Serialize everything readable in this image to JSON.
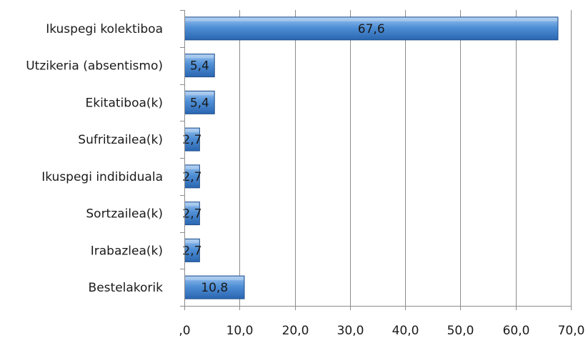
{
  "chart_data": {
    "type": "bar",
    "orientation": "horizontal",
    "categories": [
      "Ikuspegi kolektiboa",
      "Utzikeria (absentismo)",
      "Ekitatiboa(k)",
      "Sufritzailea(k)",
      "Ikuspegi indibiduala",
      "Sortzailea(k)",
      "Irabazlea(k)",
      "Bestelakorik"
    ],
    "values": [
      67.6,
      5.4,
      5.4,
      2.7,
      2.7,
      2.7,
      2.7,
      10.8
    ],
    "value_labels": [
      "67,6",
      "5,4",
      "5,4",
      "2,7",
      "2,7",
      "2,7",
      "2,7",
      "10,8"
    ],
    "xlim": [
      0,
      70
    ],
    "x_ticks": [
      0,
      10,
      20,
      30,
      40,
      50,
      60,
      70
    ],
    "x_tick_labels": [
      ",0",
      "10,0",
      "20,0",
      "30,0",
      "40,0",
      "50,0",
      "60,0",
      "70,0"
    ],
    "grid": "vertical",
    "legend": "none",
    "title": "",
    "xlabel": "",
    "ylabel": "",
    "colors": {
      "bar_fill": "#4a86cf",
      "bar_stroke": "#1f4e8c",
      "grid": "#8c8c8c",
      "axis": "#8c8c8c"
    }
  }
}
